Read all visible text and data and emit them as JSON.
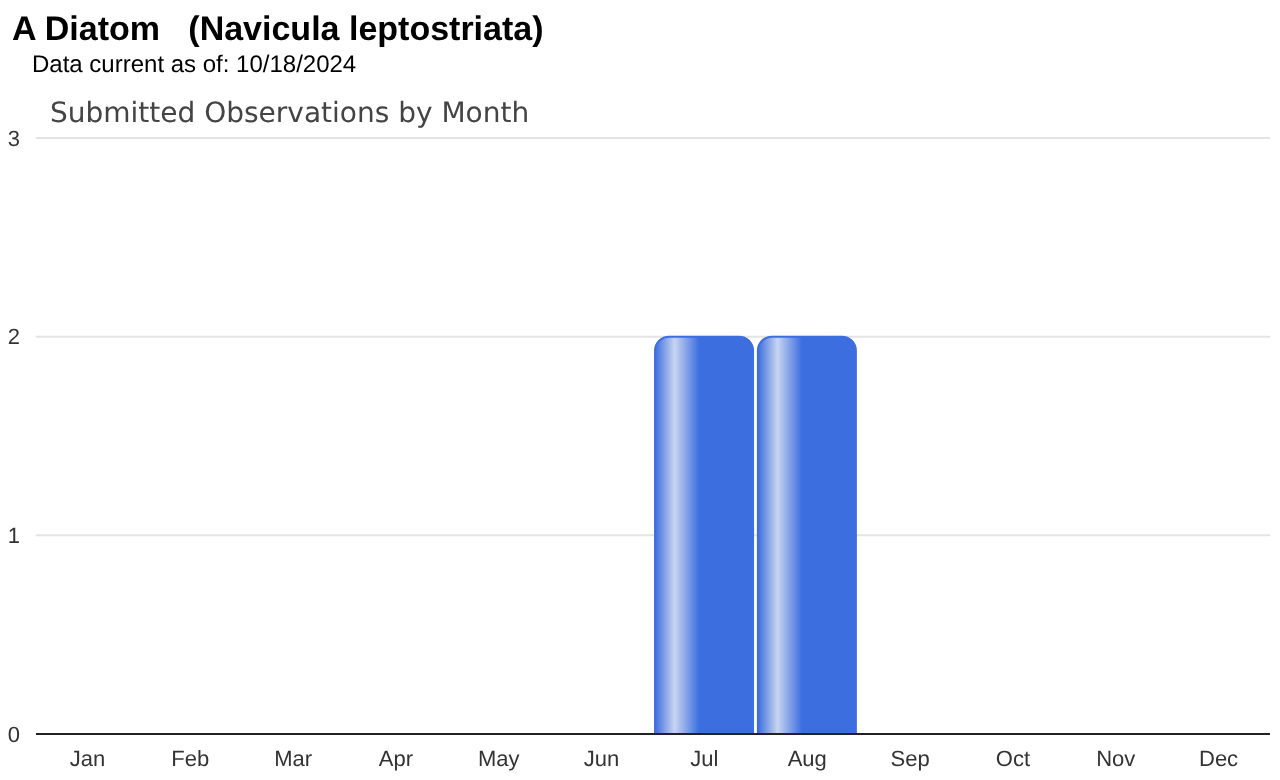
{
  "chart_data": {
    "type": "bar",
    "title": "A Diatom   (Navicula leptostriata)",
    "subtitle": "Data current as of: 10/18/2024",
    "annotations": [
      "Submitted Observations by Month"
    ],
    "categories": [
      "Jan",
      "Feb",
      "Mar",
      "Apr",
      "May",
      "Jun",
      "Jul",
      "Aug",
      "Sep",
      "Oct",
      "Nov",
      "Dec"
    ],
    "values": [
      0,
      0,
      0,
      0,
      0,
      0,
      2,
      2,
      0,
      0,
      0,
      0
    ],
    "color": "#3d6ee0",
    "ylim": [
      0,
      3
    ],
    "yticks": [
      0,
      1,
      2,
      3
    ],
    "grid": "y",
    "legend": false
  }
}
